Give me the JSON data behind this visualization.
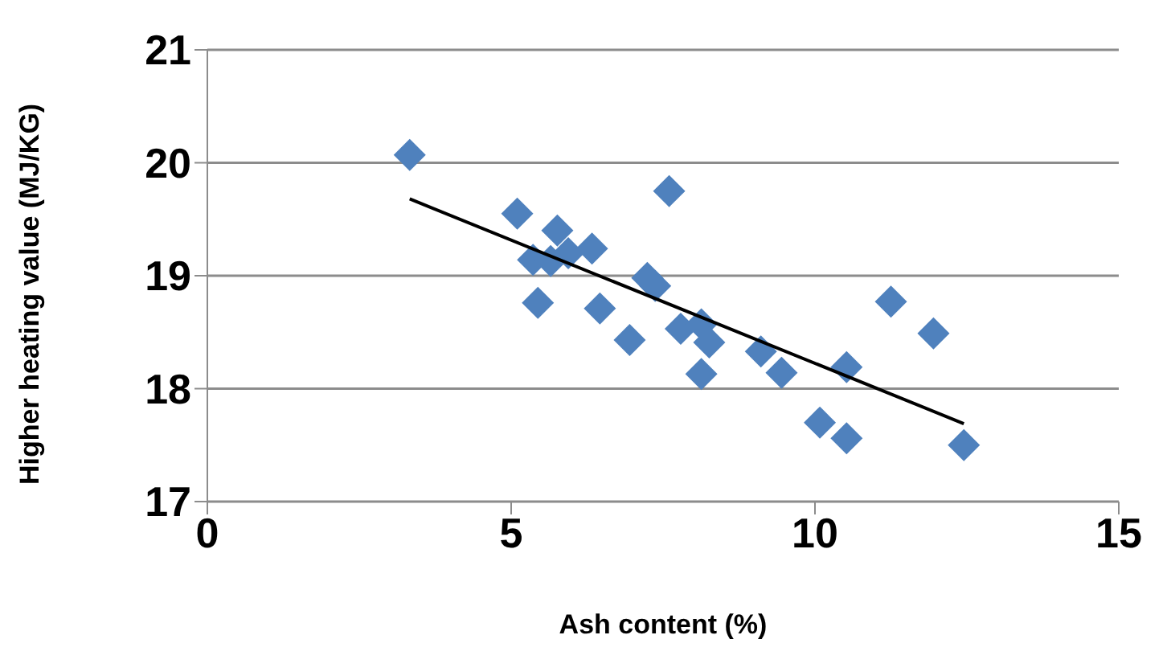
{
  "chart_data": {
    "type": "scatter",
    "xlabel": "Ash content (%)",
    "ylabel": "Higher heating value (MJ/KG)",
    "xlim": [
      0,
      15
    ],
    "xticks": [
      0,
      5,
      10,
      15
    ],
    "ylim": [
      17,
      21
    ],
    "yticks": [
      17,
      18,
      19,
      20,
      21
    ],
    "grid": "y",
    "legend": false,
    "marker": "diamond",
    "series": [
      {
        "type": "scatter",
        "color": "#4f81bd",
        "x": [
          3.33,
          5.1,
          5.76,
          5.36,
          5.65,
          5.94,
          6.33,
          5.44,
          6.46,
          6.95,
          7.24,
          7.37,
          7.6,
          7.79,
          8.13,
          8.26,
          8.13,
          9.11,
          9.45,
          10.52,
          11.25,
          11.95,
          10.08,
          10.52,
          12.45
        ],
        "values": [
          20.07,
          19.55,
          19.4,
          19.14,
          19.13,
          19.2,
          19.24,
          18.76,
          18.71,
          18.43,
          18.98,
          18.91,
          19.75,
          18.53,
          18.57,
          18.41,
          18.13,
          18.33,
          18.14,
          18.19,
          18.77,
          18.49,
          17.7,
          17.56,
          17.5
        ]
      },
      {
        "type": "line",
        "color": "#000000",
        "x": [
          3.33,
          12.45
        ],
        "values": [
          19.68,
          17.69
        ],
        "marker": "none",
        "line_style": "solid"
      }
    ]
  }
}
